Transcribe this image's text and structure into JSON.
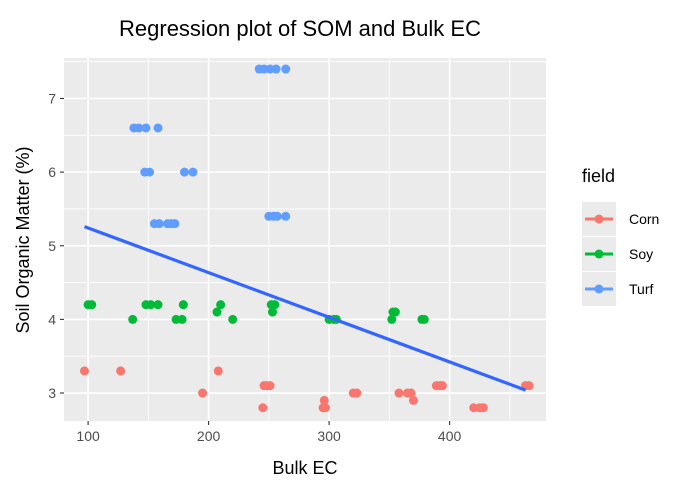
{
  "chart_data": {
    "type": "scatter",
    "title": "Regression plot of SOM and Bulk EC",
    "xlabel": "Bulk EC",
    "ylabel": "Soil Organic Matter (%)",
    "xlim": [
      80,
      480
    ],
    "ylim": [
      2.62,
      7.55
    ],
    "x_ticks": [
      100,
      200,
      300,
      400
    ],
    "y_ticks": [
      3,
      4,
      5,
      6,
      7
    ],
    "x_tick_labels": [
      "100",
      "200",
      "300",
      "400"
    ],
    "y_tick_labels": [
      "3",
      "4",
      "5",
      "6",
      "7"
    ],
    "grid": true,
    "legend": {
      "title": "field",
      "position": "right",
      "entries": [
        "Corn",
        "Soy",
        "Turf"
      ]
    },
    "colors": {
      "Corn": "#F8766D",
      "Soy": "#00BA38",
      "Turf": "#619CFF",
      "regression": "#3366FF",
      "panel": "#EBEBEB",
      "grid": "#FFFFFF"
    },
    "series": [
      {
        "name": "Corn",
        "points": [
          [
            97,
            3.3
          ],
          [
            127,
            3.3
          ],
          [
            195,
            3.0
          ],
          [
            208,
            3.3
          ],
          [
            245,
            2.8
          ],
          [
            246,
            3.1
          ],
          [
            248,
            3.1
          ],
          [
            251,
            3.1
          ],
          [
            295,
            2.8
          ],
          [
            296,
            2.9
          ],
          [
            297,
            2.8
          ],
          [
            320,
            3.0
          ],
          [
            323,
            3.0
          ],
          [
            358,
            3.0
          ],
          [
            365,
            3.0
          ],
          [
            368,
            3.0
          ],
          [
            370,
            2.9
          ],
          [
            389,
            3.1
          ],
          [
            392,
            3.1
          ],
          [
            394,
            3.1
          ],
          [
            420,
            2.8
          ],
          [
            425,
            2.8
          ],
          [
            428,
            2.8
          ],
          [
            463,
            3.1
          ],
          [
            466,
            3.1
          ]
        ]
      },
      {
        "name": "Soy",
        "points": [
          [
            100,
            4.2
          ],
          [
            103,
            4.2
          ],
          [
            137,
            4.0
          ],
          [
            148,
            4.2
          ],
          [
            152,
            4.2
          ],
          [
            158,
            4.2
          ],
          [
            173,
            4.0
          ],
          [
            178,
            4.0
          ],
          [
            179,
            4.2
          ],
          [
            207,
            4.1
          ],
          [
            210,
            4.2
          ],
          [
            220,
            4.0
          ],
          [
            252,
            4.2
          ],
          [
            253,
            4.1
          ],
          [
            255,
            4.2
          ],
          [
            300,
            4.0
          ],
          [
            304,
            4.0
          ],
          [
            306,
            4.0
          ],
          [
            352,
            4.0
          ],
          [
            353,
            4.1
          ],
          [
            355,
            4.1
          ],
          [
            377,
            4.0
          ],
          [
            379,
            4.0
          ]
        ]
      },
      {
        "name": "Turf",
        "points": [
          [
            138,
            6.6
          ],
          [
            142,
            6.6
          ],
          [
            148,
            6.6
          ],
          [
            158,
            6.6
          ],
          [
            147,
            6.0
          ],
          [
            151,
            6.0
          ],
          [
            155,
            5.3
          ],
          [
            159,
            5.3
          ],
          [
            166,
            5.3
          ],
          [
            169,
            5.3
          ],
          [
            172,
            5.3
          ],
          [
            180,
            6.0
          ],
          [
            187,
            6.0
          ],
          [
            242,
            7.4
          ],
          [
            246,
            7.4
          ],
          [
            251,
            7.4
          ],
          [
            256,
            7.4
          ],
          [
            264,
            7.4
          ],
          [
            250,
            5.4
          ],
          [
            254,
            5.4
          ],
          [
            257,
            5.4
          ],
          [
            264,
            5.4
          ]
        ]
      }
    ],
    "regression_line": {
      "x": [
        97,
        463
      ],
      "y": [
        5.26,
        3.04
      ]
    }
  }
}
